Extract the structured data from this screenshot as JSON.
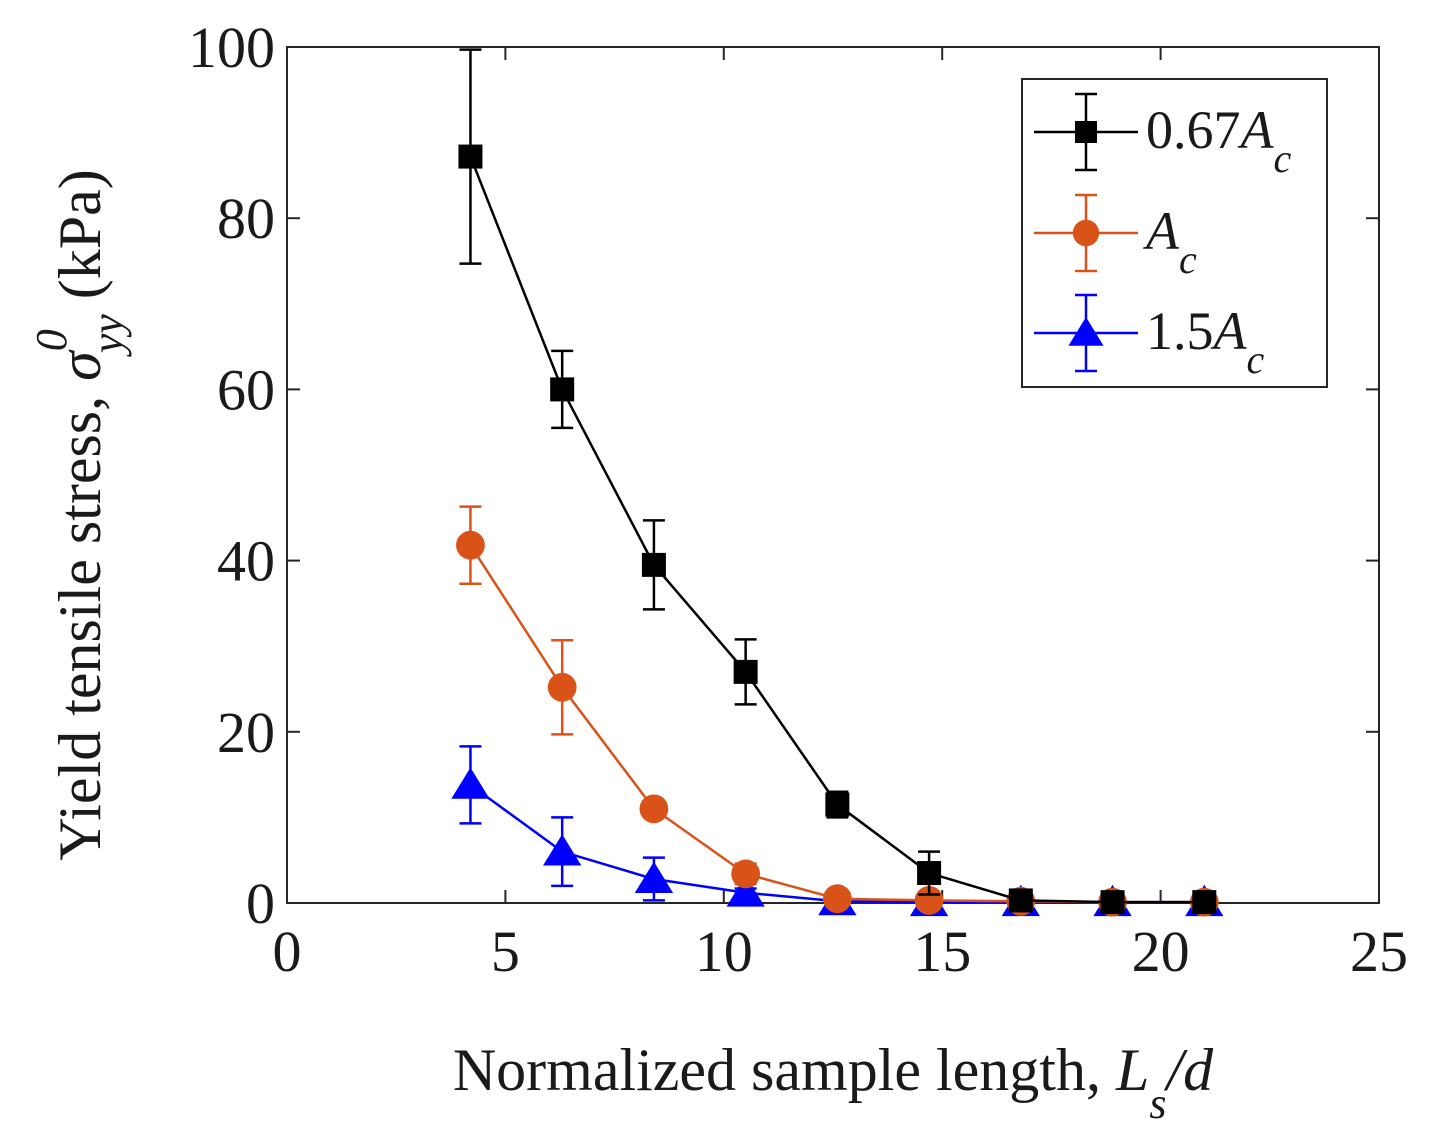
{
  "chart_data": {
    "type": "line",
    "xlabel": {
      "main": "Normalized sample length, ",
      "var": "L",
      "sub": "s",
      "tail": "/d"
    },
    "ylabel": {
      "main": "Yield tensile stress, ",
      "var": "σ",
      "sup": "0",
      "sub": "yy",
      "tail": " (kPa)"
    },
    "xlim": [
      0,
      25
    ],
    "ylim": [
      0,
      100
    ],
    "xticks": [
      "0",
      "5",
      "10",
      "15",
      "20",
      "25"
    ],
    "yticks": [
      "0",
      "20",
      "40",
      "60",
      "80",
      "100"
    ],
    "legend_position": "top-right",
    "x": [
      4.2,
      6.3,
      8.4,
      10.5,
      12.6,
      14.7,
      16.8,
      18.9,
      21.0
    ],
    "series": [
      {
        "name": "0.67A_c",
        "label_prefix": "0.67",
        "label_var": "A",
        "label_sub": "c",
        "color": "#000000",
        "marker": "square",
        "values": [
          87.2,
          60.0,
          39.5,
          27.0,
          11.5,
          3.5,
          0.3,
          0.1,
          0.1
        ],
        "errors": [
          12.5,
          4.5,
          5.2,
          3.8,
          1.5,
          2.5,
          0.3,
          0.2,
          0.2
        ]
      },
      {
        "name": "A_c",
        "label_prefix": "",
        "label_var": "A",
        "label_sub": "c",
        "color": "#d95319",
        "marker": "circle",
        "values": [
          41.8,
          25.2,
          11.0,
          3.4,
          0.5,
          0.3,
          0.2,
          0.1,
          0.1
        ],
        "errors": [
          4.5,
          5.5,
          0.6,
          1.2,
          0.3,
          0.2,
          0.2,
          0.1,
          0.1
        ]
      },
      {
        "name": "1.5A_c",
        "label_prefix": "1.5",
        "label_var": "A",
        "label_sub": "c",
        "color": "#0000ff",
        "marker": "triangle",
        "values": [
          13.8,
          6.0,
          2.8,
          1.2,
          0.2,
          0.1,
          0.1,
          0.1,
          0.1
        ],
        "errors": [
          4.5,
          4.0,
          2.5,
          0.5,
          0.2,
          0.1,
          0.1,
          0.1,
          0.1
        ]
      }
    ]
  }
}
